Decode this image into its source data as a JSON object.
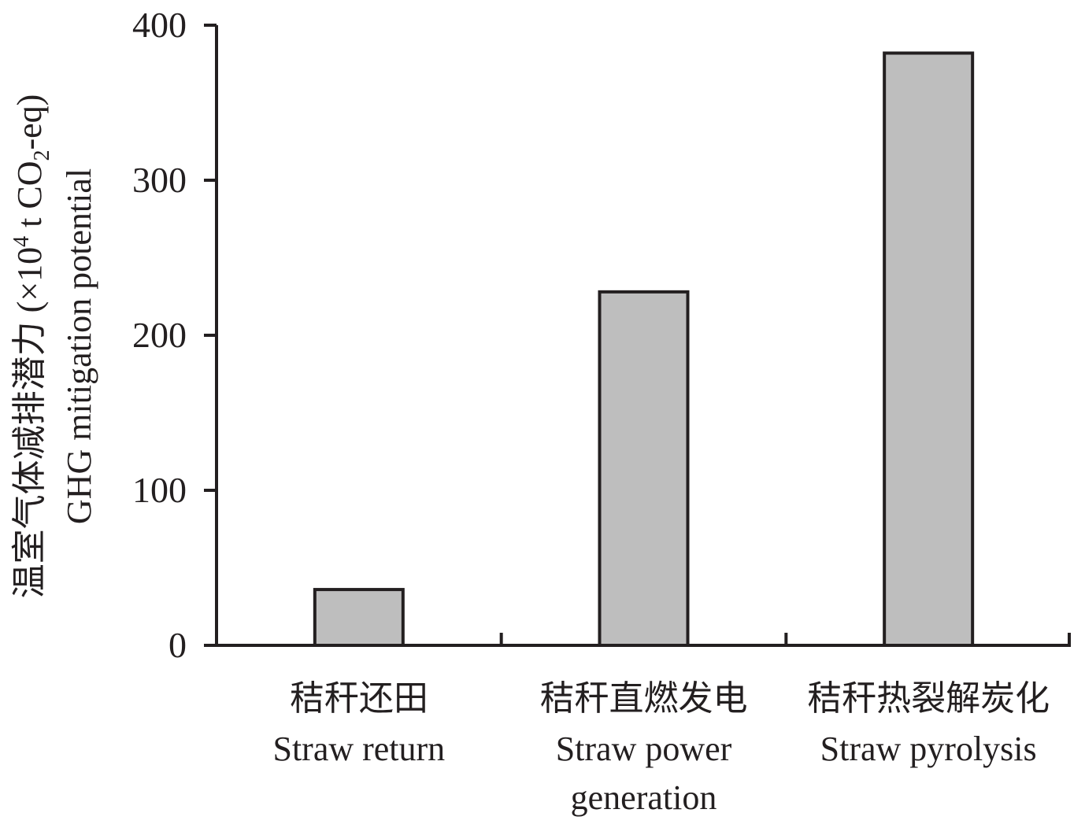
{
  "chart_data": {
    "type": "bar",
    "categories": [
      {
        "zh": "秸秆还田",
        "en": [
          "Straw return"
        ]
      },
      {
        "zh": "秸秆直燃发电",
        "en": [
          "Straw power",
          "generation"
        ]
      },
      {
        "zh": "秸秆热裂解炭化",
        "en": [
          "Straw pyrolysis"
        ]
      }
    ],
    "values": [
      36,
      228,
      382
    ],
    "ylim": [
      0,
      400
    ],
    "yticks": [
      0,
      100,
      200,
      300,
      400
    ],
    "ylabel": {
      "line1_prefix": "温室气体减排潜力 (×10",
      "line1_sup": "4",
      "line1_mid": " t CO",
      "line1_sub": "2",
      "line1_suffix": "-eq)",
      "line2": "GHG mitigation potential"
    },
    "bar_color": "#bebebe",
    "grid": false,
    "legend": "none"
  }
}
